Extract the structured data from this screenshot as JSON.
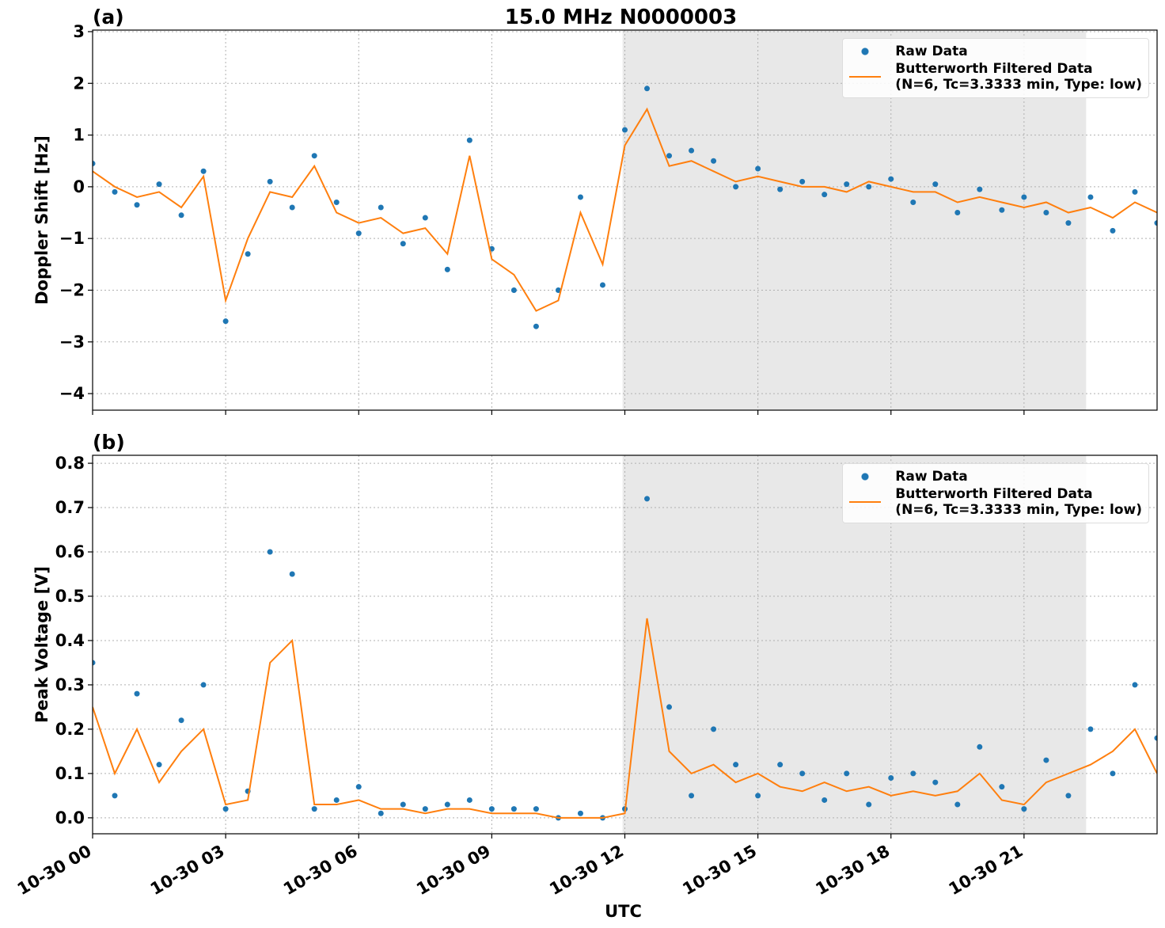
{
  "chart_data": [
    {
      "type": "line",
      "panel": "(a)",
      "title": "15.0 MHz N0000003",
      "ylabel": "Doppler Shift [Hz]",
      "x": [
        0,
        0.5,
        1,
        1.5,
        2,
        2.5,
        3,
        3.5,
        4,
        4.5,
        5,
        5.5,
        6,
        6.5,
        7,
        7.5,
        8,
        8.5,
        9,
        9.5,
        10,
        10.5,
        11,
        11.5,
        12,
        12.5,
        13,
        13.5,
        14,
        14.5,
        15,
        15.5,
        16,
        16.5,
        17,
        17.5,
        18,
        18.5,
        19,
        19.5,
        20,
        20.5,
        21,
        21.5,
        22,
        22.5,
        23,
        23.5,
        24
      ],
      "xlim": [
        0,
        24
      ],
      "xticks": [
        0,
        3,
        6,
        9,
        12,
        15,
        18,
        21
      ],
      "ylim": [
        -4.32,
        3.03
      ],
      "yticks": [
        {
          "value": -4,
          "label": "−4"
        },
        {
          "value": -3,
          "label": "−3"
        },
        {
          "value": -2,
          "label": "−2"
        },
        {
          "value": -1,
          "label": "−1"
        },
        0,
        1,
        2,
        3
      ],
      "grid": true,
      "shaded_span": [
        11.95,
        22.4
      ],
      "legend": "upper right",
      "series": [
        {
          "name": "Raw Data",
          "style": "points",
          "color": "#1f77b4",
          "values": [
            0.45,
            -0.1,
            -0.35,
            0.05,
            -0.55,
            0.3,
            -2.6,
            -1.3,
            0.1,
            -0.4,
            0.6,
            -0.3,
            -0.9,
            -0.4,
            -1.1,
            -0.6,
            -1.6,
            0.9,
            -1.2,
            -2.0,
            -2.7,
            -2.0,
            -0.2,
            -1.9,
            1.1,
            1.9,
            0.6,
            0.7,
            0.5,
            0.0,
            0.35,
            -0.05,
            0.1,
            -0.15,
            0.05,
            0.0,
            0.15,
            -0.3,
            0.05,
            -0.5,
            -0.05,
            -0.45,
            -0.2,
            -0.5,
            -0.7,
            -0.2,
            -0.85,
            -0.1,
            -0.7
          ]
        },
        {
          "name": "Butterworth Filtered Data\n(N=6, Tc=3.3333 min, Type: low)",
          "style": "line",
          "color": "#ff7f0e",
          "values": [
            0.3,
            0,
            -0.2,
            -0.1,
            -0.4,
            0.2,
            -2.2,
            -1.0,
            -0.1,
            -0.2,
            0.4,
            -0.5,
            -0.7,
            -0.6,
            -0.9,
            -0.8,
            -1.3,
            0.6,
            -1.4,
            -1.7,
            -2.4,
            -2.2,
            -0.5,
            -1.5,
            0.8,
            1.5,
            0.4,
            0.5,
            0.3,
            0.1,
            0.2,
            0.1,
            0,
            0,
            -0.1,
            0.1,
            0,
            -0.1,
            -0.1,
            -0.3,
            -0.2,
            -0.3,
            -0.4,
            -0.3,
            -0.5,
            -0.4,
            -0.6,
            -0.3,
            -0.5
          ]
        }
      ]
    },
    {
      "type": "line",
      "panel": "(b)",
      "ylabel": "Peak Voltage [V]",
      "xlabel": "UTC",
      "x": [
        0,
        0.5,
        1,
        1.5,
        2,
        2.5,
        3,
        3.5,
        4,
        4.5,
        5,
        5.5,
        6,
        6.5,
        7,
        7.5,
        8,
        8.5,
        9,
        9.5,
        10,
        10.5,
        11,
        11.5,
        12,
        12.5,
        13,
        13.5,
        14,
        14.5,
        15,
        15.5,
        16,
        16.5,
        17,
        17.5,
        18,
        18.5,
        19,
        19.5,
        20,
        20.5,
        21,
        21.5,
        22,
        22.5,
        23,
        23.5,
        24
      ],
      "xlim": [
        0,
        24
      ],
      "xticks": [
        {
          "value": 0,
          "label": "10-30 00"
        },
        {
          "value": 3,
          "label": "10-30 03"
        },
        {
          "value": 6,
          "label": "10-30 06"
        },
        {
          "value": 9,
          "label": "10-30 09"
        },
        {
          "value": 12,
          "label": "10-30 12"
        },
        {
          "value": 15,
          "label": "10-30 15"
        },
        {
          "value": 18,
          "label": "10-30 18"
        },
        {
          "value": 21,
          "label": "10-30 21"
        }
      ],
      "ylim": [
        -0.036,
        0.818
      ],
      "yticks": [
        {
          "value": 0,
          "label": "0.0"
        },
        0.1,
        0.2,
        0.3,
        0.4,
        0.5,
        0.6,
        0.7,
        0.8
      ],
      "grid": true,
      "shaded_span": [
        11.95,
        22.4
      ],
      "legend": "upper right",
      "series": [
        {
          "name": "Raw Data",
          "style": "points",
          "color": "#1f77b4",
          "values": [
            0.35,
            0.05,
            0.28,
            0.12,
            0.22,
            0.3,
            0.02,
            0.06,
            0.6,
            0.55,
            0.02,
            0.04,
            0.07,
            0.01,
            0.03,
            0.02,
            0.03,
            0.04,
            0.02,
            0.02,
            0.02,
            0.0,
            0.01,
            0.0,
            0.02,
            0.72,
            0.25,
            0.05,
            0.2,
            0.12,
            0.05,
            0.12,
            0.1,
            0.04,
            0.1,
            0.03,
            0.09,
            0.1,
            0.08,
            0.03,
            0.16,
            0.07,
            0.02,
            0.13,
            0.05,
            0.2,
            0.1,
            0.3,
            0.18
          ]
        },
        {
          "name": "Butterworth Filtered Data\n(N=6, Tc=3.3333 min, Type: low)",
          "style": "line",
          "color": "#ff7f0e",
          "values": [
            0.25,
            0.1,
            0.2,
            0.08,
            0.15,
            0.2,
            0.03,
            0.04,
            0.35,
            0.4,
            0.03,
            0.03,
            0.04,
            0.02,
            0.02,
            0.01,
            0.02,
            0.02,
            0.01,
            0.01,
            0.01,
            0.0,
            0.0,
            0.0,
            0.01,
            0.45,
            0.15,
            0.1,
            0.12,
            0.08,
            0.1,
            0.07,
            0.06,
            0.08,
            0.06,
            0.07,
            0.05,
            0.06,
            0.05,
            0.06,
            0.1,
            0.04,
            0.03,
            0.08,
            0.1,
            0.12,
            0.15,
            0.2,
            0.1
          ]
        }
      ]
    }
  ]
}
